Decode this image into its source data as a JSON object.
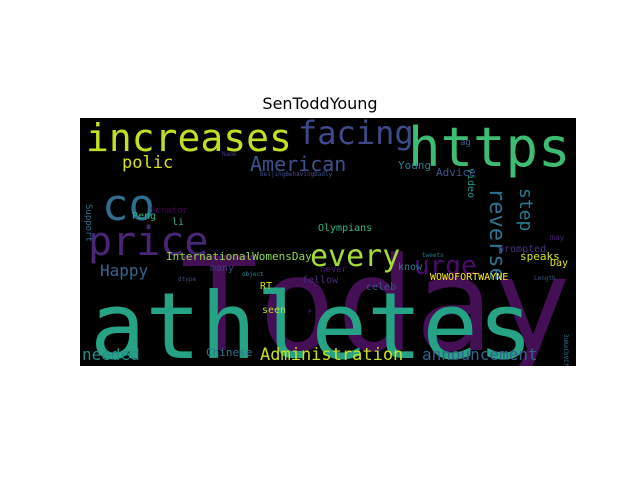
{
  "chart_data": {
    "type": "wordcloud",
    "title": "SenToddYoung",
    "background": "#000000",
    "colormap": "viridis",
    "words": [
      {
        "text": "Today",
        "weight": 1.0,
        "color": "#440f55",
        "rotate": 0
      },
      {
        "text": "athletes",
        "weight": 0.97,
        "color": "#26a384",
        "rotate": 0
      },
      {
        "text": "https",
        "weight": 0.6,
        "color": "#3fbc73",
        "rotate": 0
      },
      {
        "text": "increases",
        "weight": 0.5,
        "color": "#c2df23",
        "rotate": 0
      },
      {
        "text": "co",
        "weight": 0.48,
        "color": "#2e6f8e",
        "rotate": 0
      },
      {
        "text": "price",
        "weight": 0.46,
        "color": "#482676",
        "rotate": 0
      },
      {
        "text": "facing",
        "weight": 0.42,
        "color": "#3e4989",
        "rotate": 0
      },
      {
        "text": "every",
        "weight": 0.35,
        "color": "#a5db36",
        "rotate": 0
      },
      {
        "text": "American",
        "weight": 0.25,
        "color": "#3b528b",
        "rotate": 0
      },
      {
        "text": "urge",
        "weight": 0.26,
        "color": "#4b0c6b",
        "rotate": 0
      },
      {
        "text": "reverse",
        "weight": 0.22,
        "color": "#2c728e",
        "rotate": 90
      },
      {
        "text": "step",
        "weight": 0.19,
        "color": "#287c8e",
        "rotate": 90
      },
      {
        "text": "polic",
        "weight": 0.17,
        "color": "#d8e219",
        "rotate": 0
      },
      {
        "text": "Happy",
        "weight": 0.15,
        "color": "#31688e",
        "rotate": 0
      },
      {
        "text": "Administration",
        "weight": 0.17,
        "color": "#c8e020",
        "rotate": 0
      },
      {
        "text": "announcement",
        "weight": 0.16,
        "color": "#33638d",
        "rotate": 0
      },
      {
        "text": "needed",
        "weight": 0.16,
        "color": "#21918c",
        "rotate": 0
      },
      {
        "text": "InternationalWomensDay",
        "weight": 0.09,
        "color": "#8fd744",
        "rotate": 0
      },
      {
        "text": "Olympians",
        "weight": 0.09,
        "color": "#35b779",
        "rotate": 0
      },
      {
        "text": "Young",
        "weight": 0.09,
        "color": "#2a788e",
        "rotate": 0
      },
      {
        "text": "Advice",
        "weight": 0.09,
        "color": "#3a548c",
        "rotate": 0
      },
      {
        "text": "WOWOFORTWAYNE",
        "weight": 0.08,
        "color": "#fde725",
        "rotate": 0
      },
      {
        "text": "video",
        "weight": 0.08,
        "color": "#1f978b",
        "rotate": 90
      },
      {
        "text": "speaks",
        "weight": 0.09,
        "color": "#d0e11c",
        "rotate": 0
      },
      {
        "text": "prompted",
        "weight": 0.09,
        "color": "#46327e",
        "rotate": 0
      },
      {
        "text": "Day",
        "weight": 0.09,
        "color": "#e5e419",
        "rotate": 0
      },
      {
        "text": "Chinese",
        "weight": 0.1,
        "color": "#2b758e",
        "rotate": 0
      },
      {
        "text": "many",
        "weight": 0.08,
        "color": "#433e85",
        "rotate": 0
      },
      {
        "text": "RT",
        "weight": 0.09,
        "color": "#dde318",
        "rotate": 0
      },
      {
        "text": "fellow",
        "weight": 0.08,
        "color": "#472d7b",
        "rotate": 0
      },
      {
        "text": "celeb",
        "weight": 0.08,
        "color": "#3b528b",
        "rotate": 0
      },
      {
        "text": "know",
        "weight": 0.08,
        "color": "#287d8e",
        "rotate": 0
      },
      {
        "text": "never",
        "weight": 0.08,
        "color": "#481a6c",
        "rotate": 0
      },
      {
        "text": "seen",
        "weight": 0.08,
        "color": "#b5de2b",
        "rotate": 0
      },
      {
        "text": "Peng",
        "weight": 0.08,
        "color": "#29af7f",
        "rotate": 0
      },
      {
        "text": "Senator",
        "weight": 0.08,
        "color": "#440154",
        "rotate": 0
      },
      {
        "text": "li",
        "weight": 0.08,
        "color": "#2fb47c",
        "rotate": 0
      },
      {
        "text": "Support",
        "weight": 0.08,
        "color": "#2c728e",
        "rotate": 90
      },
      {
        "text": "ag",
        "weight": 0.07,
        "color": "#355f8d",
        "rotate": 0
      },
      {
        "text": "may",
        "weight": 0.07,
        "color": "#481f70",
        "rotate": 0
      },
      {
        "text": "BeijingBehavingBadly",
        "weight": 0.04,
        "color": "#3b528b",
        "rotate": 0
      },
      {
        "text": "Name",
        "weight": 0.04,
        "color": "#453781",
        "rotate": 0
      },
      {
        "text": "object",
        "weight": 0.04,
        "color": "#25858e",
        "rotate": 0
      },
      {
        "text": "dtype",
        "weight": 0.04,
        "color": "#3e4989",
        "rotate": 0
      },
      {
        "text": "tweets",
        "weight": 0.04,
        "color": "#2d708e",
        "rotate": 0
      },
      {
        "text": "Length",
        "weight": 0.04,
        "color": "#39568c",
        "rotate": 0
      },
      {
        "text": "P",
        "weight": 0.04,
        "color": "#482173",
        "rotate": 0
      },
      {
        "text": "3uKeCbVCf2",
        "weight": 0.04,
        "color": "#2a788e",
        "rotate": 90
      }
    ]
  }
}
